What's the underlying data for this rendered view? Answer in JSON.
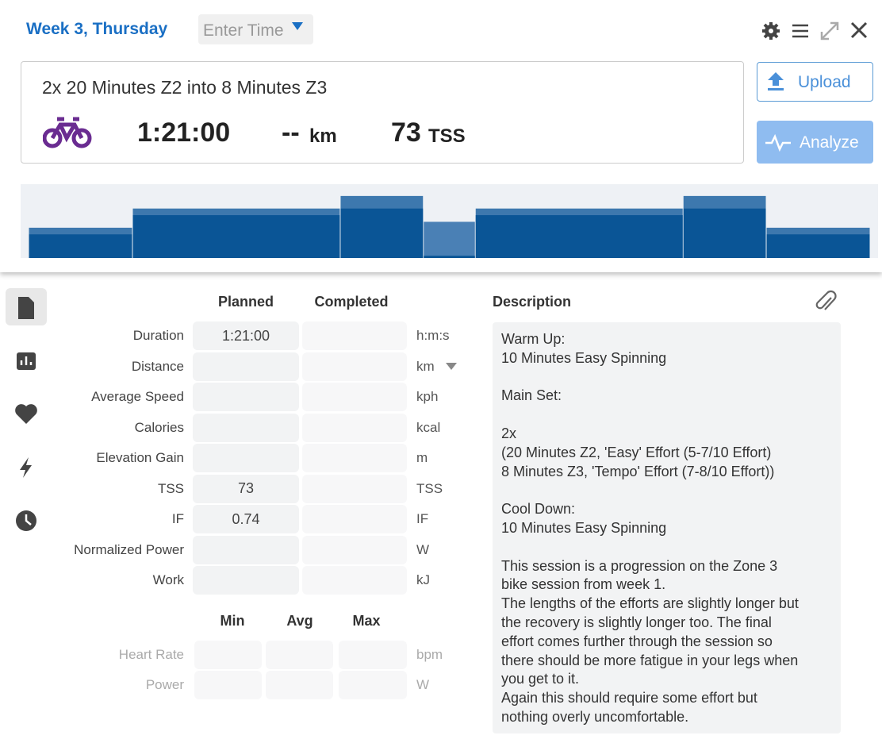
{
  "header": {
    "title": "Week 3, Thursday",
    "time_placeholder": "Enter Time"
  },
  "workout": {
    "name": "2x 20 Minutes Z2 into 8 Minutes Z3",
    "duration": "1:21:00",
    "distance": "--",
    "distance_unit": "km",
    "tss": "73",
    "tss_unit": "TSS"
  },
  "buttons": {
    "upload": "Upload",
    "analyze": "Analyze"
  },
  "profile": {
    "minutes": [
      10,
      20,
      8,
      5,
      20,
      8,
      10
    ],
    "low": [
      32,
      58,
      67,
      3,
      58,
      67,
      32
    ],
    "high": [
      41,
      67,
      84,
      49,
      67,
      84,
      41
    ],
    "ylim": [
      0,
      100
    ]
  },
  "metrics": {
    "headers": [
      "Planned",
      "Completed"
    ],
    "rows": [
      {
        "label": "Duration",
        "planned": "1:21:00",
        "unit": "h:m:s"
      },
      {
        "label": "Distance",
        "unit": "km"
      },
      {
        "label": "Average Speed",
        "unit": "kph"
      },
      {
        "label": "Calories",
        "unit": "kcal"
      },
      {
        "label": "Elevation Gain",
        "unit": "m"
      },
      {
        "label": "TSS",
        "planned": "73",
        "unit": "TSS"
      },
      {
        "label": "IF",
        "planned": "0.74",
        "unit": "IF"
      },
      {
        "label": "Normalized Power",
        "unit": "W"
      },
      {
        "label": "Work",
        "unit": "kJ"
      }
    ]
  },
  "zones": {
    "headers": [
      "Min",
      "Avg",
      "Max"
    ],
    "rows": [
      {
        "label": "Heart Rate",
        "unit": "bpm"
      },
      {
        "label": "Power",
        "unit": "W"
      }
    ]
  },
  "description": {
    "title": "Description",
    "text": "Warm Up:\n10 Minutes Easy Spinning\n\nMain Set:\n\n2x\n(20 Minutes Z2, 'Easy' Effort (5-7/10 Effort)\n8 Minutes Z3, 'Tempo' Effort (7-8/10 Effort))\n\nCool Down:\n10 Minutes Easy Spinning\n\nThis session is a progression on the Zone 3\nbike session from week 1.\nThe lengths of the efforts are slightly longer but\nthe recovery is slightly longer too. The final\neffort comes further through the session so\nthere should be more fatigue in your legs when\nyou get to it.\nAgain this should require some effort but\nnothing overly uncomfortable."
  }
}
